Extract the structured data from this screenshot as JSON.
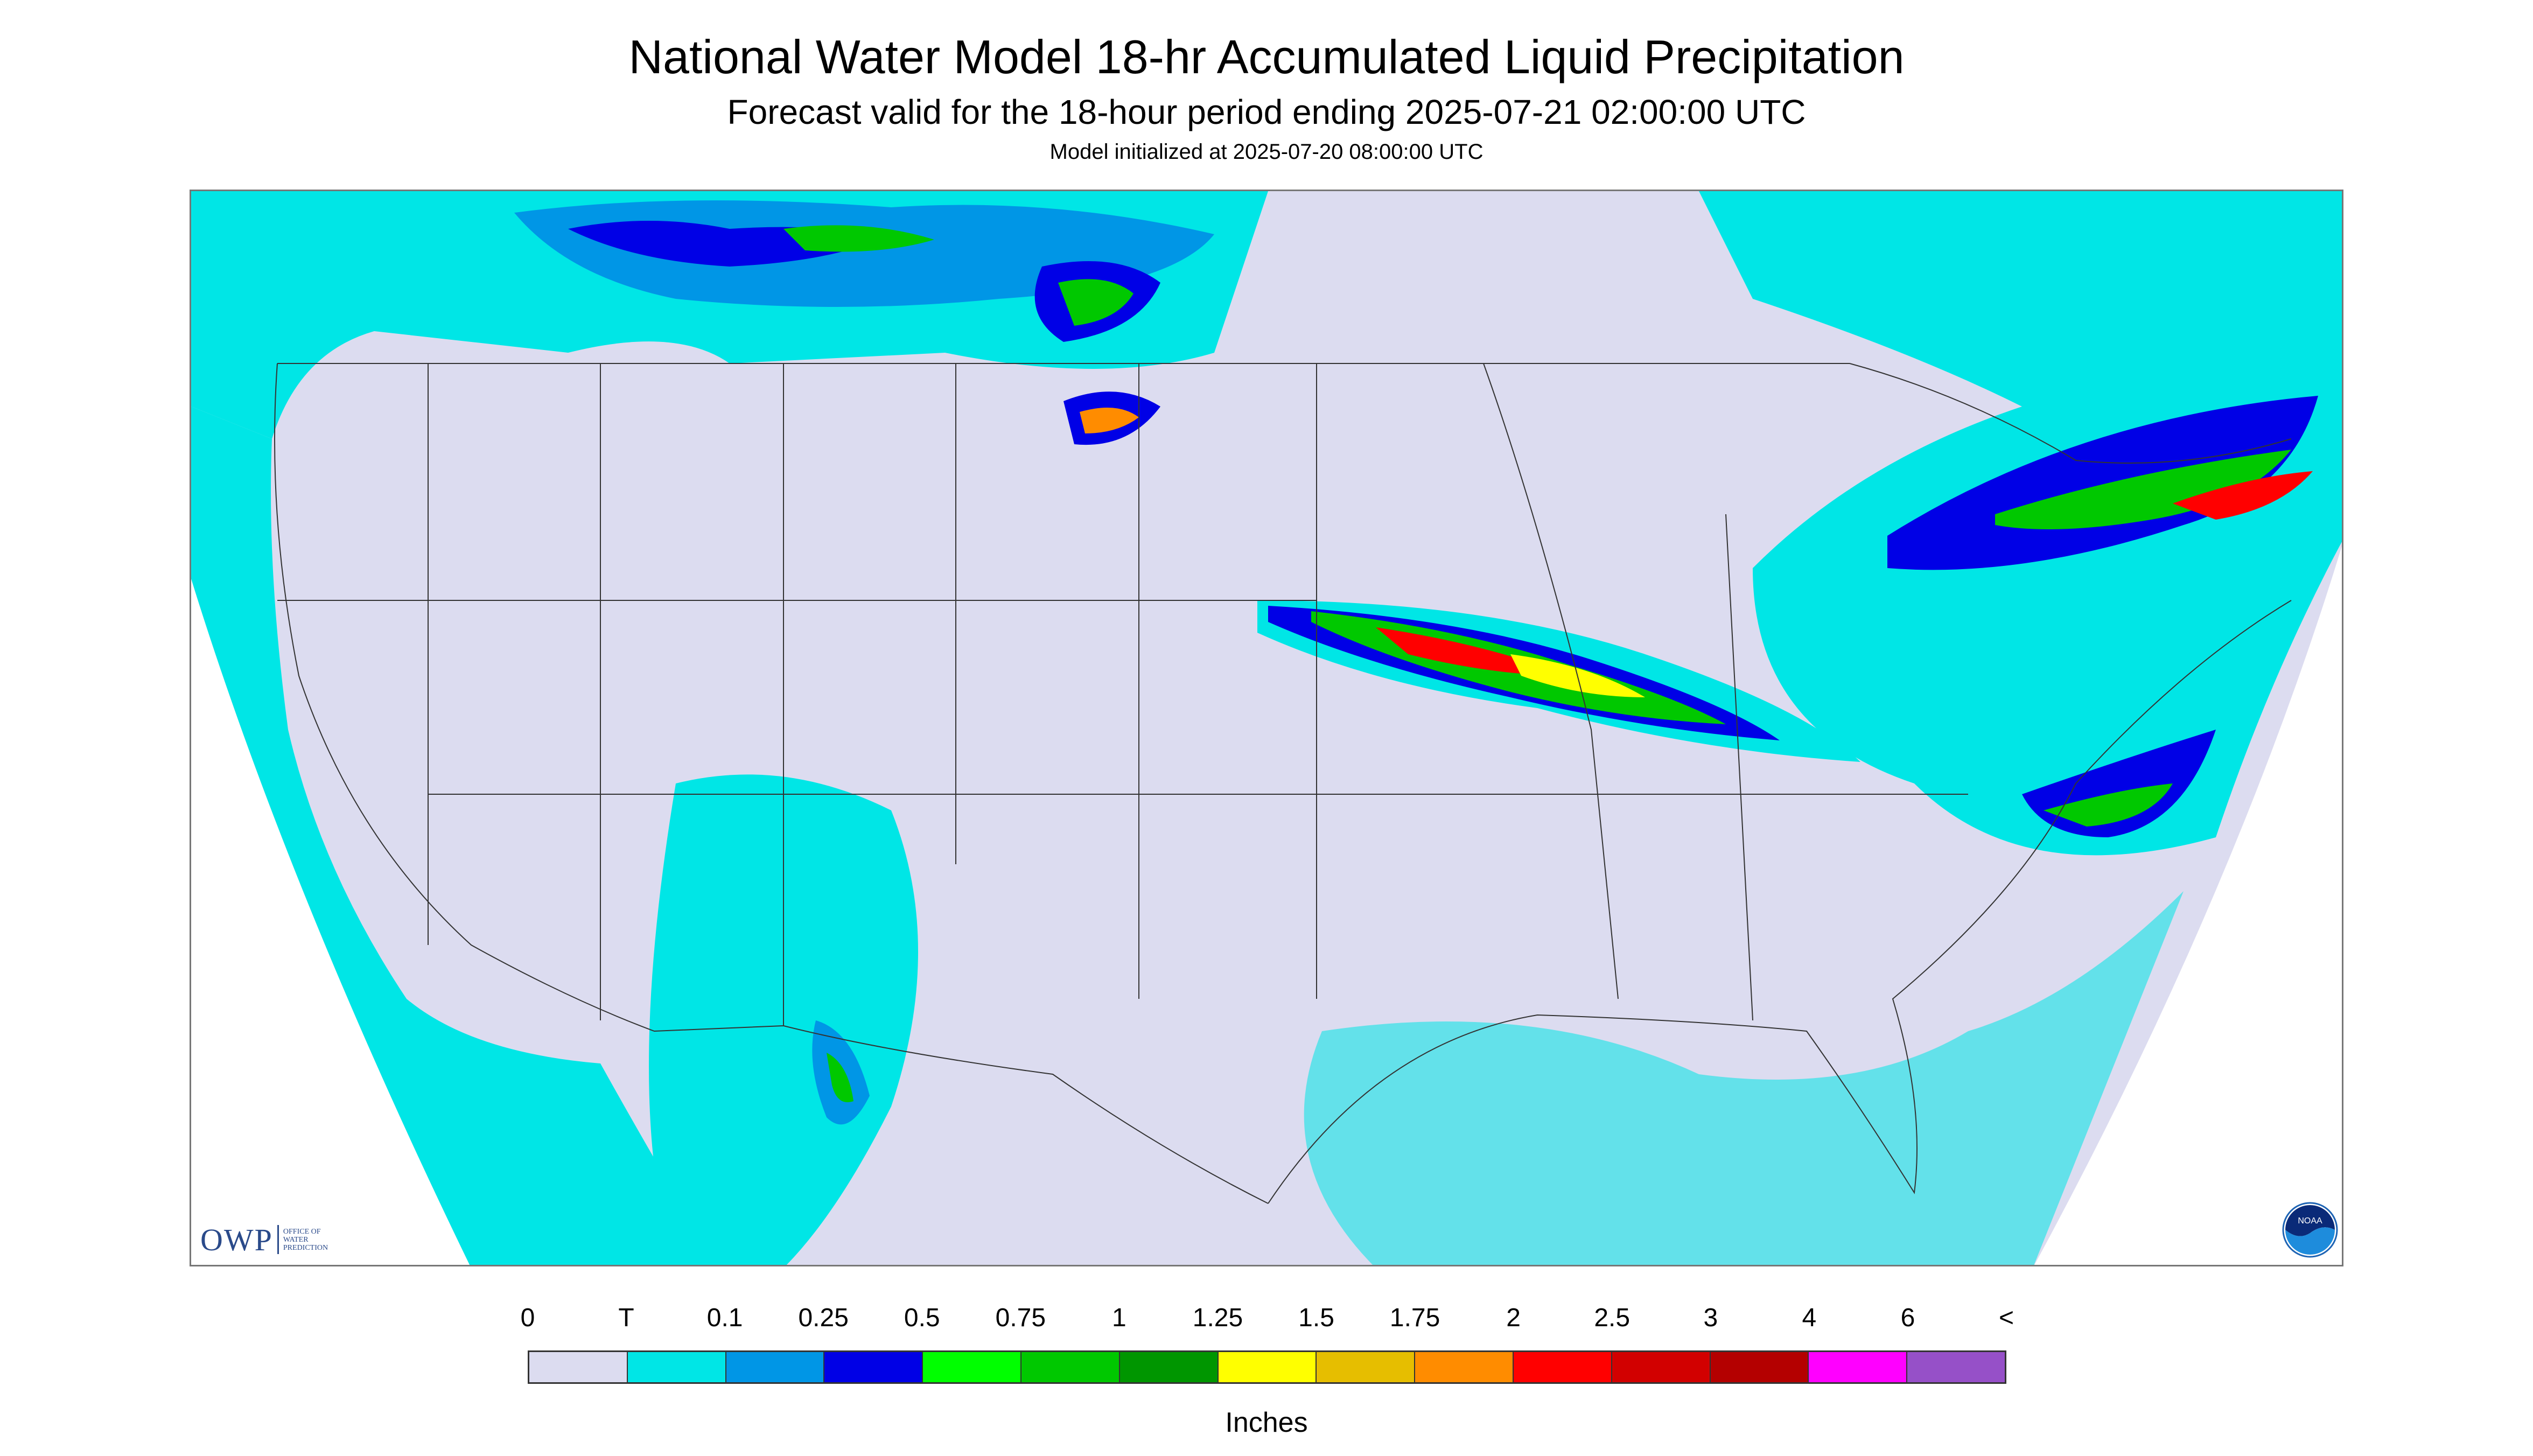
{
  "header": {
    "title": "National Water Model 18-hr Accumulated Liquid Precipitation",
    "subtitle": "Forecast valid for the 18-hour period ending 2025-07-21 02:00:00 UTC",
    "init": "Model initialized at 2025-07-20 08:00:00 UTC"
  },
  "logos": {
    "owp_mark": "OWP",
    "owp_line1": "OFFICE OF",
    "owp_line2": "WATER",
    "owp_line3": "PREDICTION",
    "owp_color": "#2a4a8a",
    "noaa_label": "NOAA"
  },
  "legend": {
    "unit": "Inches",
    "labels": [
      "0",
      "T",
      "0.1",
      "0.25",
      "0.5",
      "0.75",
      "1",
      "1.25",
      "1.5",
      "1.75",
      "2",
      "2.5",
      "3",
      "4",
      "6",
      "<"
    ],
    "colors": [
      "#dcdcf0",
      "#00e6e6",
      "#0096e6",
      "#0000e6",
      "#00ff00",
      "#00c800",
      "#009600",
      "#ffff00",
      "#e6be00",
      "#ff8c00",
      "#ff0000",
      "#d20000",
      "#b40000",
      "#ff00ff",
      "#9650c8"
    ]
  },
  "map": {
    "background_color": "#dcdcf0",
    "ocean_color": "#00e6e6",
    "border_color": "#333333"
  }
}
